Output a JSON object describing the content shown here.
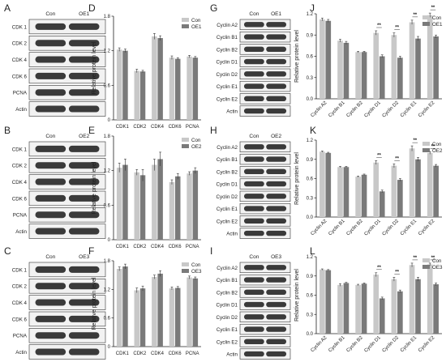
{
  "colors": {
    "con": "#c8c8c8",
    "oe": "#7a7a7a",
    "axis": "#222222"
  },
  "blots": [
    {
      "label": "A",
      "headers": [
        "Con",
        "OE1"
      ],
      "rows": [
        "CDK 1",
        "CDK 2",
        "CDK 4",
        "CDK 6",
        "PCNA",
        "Actin"
      ]
    },
    {
      "label": "B",
      "headers": [
        "Con",
        "OE2"
      ],
      "rows": [
        "CDK 1",
        "CDK 2",
        "CDK 4",
        "CDK 6",
        "PCNA",
        "Actin"
      ]
    },
    {
      "label": "C",
      "headers": [
        "Con",
        "OE3"
      ],
      "rows": [
        "CDK 1",
        "CDK 2",
        "CDK 4",
        "CDK 6",
        "PCNA",
        "Actin"
      ]
    },
    {
      "label": "G",
      "headers": [
        "Con",
        "OE1"
      ],
      "rows": [
        "Cyclin A2",
        "Cyclin B1",
        "Cyclin B2",
        "Cyclin D1",
        "Cyclin D2",
        "Cyclin E1",
        "Cyclin E2",
        "Actin"
      ]
    },
    {
      "label": "H",
      "headers": [
        "Con",
        "OE2"
      ],
      "rows": [
        "Cyclin A2",
        "Cyclin B1",
        "Cyclin B2",
        "Cyclin D1",
        "Cyclin D2",
        "Cyclin E1",
        "Cyclin E2",
        "Actin"
      ]
    },
    {
      "label": "I",
      "headers": [
        "Con",
        "OE3"
      ],
      "rows": [
        "Cyclin A2",
        "Cyclin B1",
        "Cyclin B2",
        "Cyclin D1",
        "Cyclin D2",
        "Cyclin E1",
        "Cyclin E2",
        "Actin"
      ]
    }
  ],
  "chart_data": [
    {
      "label": "D",
      "type": "bar",
      "ylabel": "Relative protein level",
      "ylim": [
        0,
        1.8
      ],
      "yticks": [
        "0",
        "0.6",
        "1.2",
        "1.8"
      ],
      "legend": [
        "Con",
        "OE1"
      ],
      "categories": [
        "CDK1",
        "CDK2",
        "CDK4",
        "CDK6",
        "PCNA"
      ],
      "series": [
        {
          "name": "Con",
          "values": [
            1.22,
            0.85,
            1.45,
            1.08,
            1.1
          ],
          "errors": [
            0.03,
            0.03,
            0.05,
            0.03,
            0.02
          ]
        },
        {
          "name": "OE1",
          "values": [
            1.2,
            0.84,
            1.42,
            1.06,
            1.08
          ],
          "errors": [
            0.03,
            0.02,
            0.04,
            0.02,
            0.02
          ]
        }
      ],
      "significance": []
    },
    {
      "label": "E",
      "type": "bar",
      "ylabel": "Relative protein level",
      "ylim": [
        0,
        1.8
      ],
      "yticks": [
        "0",
        "0.6",
        "1.2",
        "1.8"
      ],
      "legend": [
        "Con",
        "OE2"
      ],
      "categories": [
        "CDK1",
        "CDK2",
        "CDK4",
        "CDK6",
        "PCNA"
      ],
      "series": [
        {
          "name": "Con",
          "values": [
            1.25,
            1.17,
            1.3,
            1.0,
            1.15
          ],
          "errors": [
            0.08,
            0.05,
            0.1,
            0.04,
            0.03
          ]
        },
        {
          "name": "OE2",
          "values": [
            1.3,
            1.12,
            1.4,
            1.1,
            1.2
          ],
          "errors": [
            0.1,
            0.1,
            0.12,
            0.05,
            0.05
          ]
        }
      ],
      "significance": []
    },
    {
      "label": "F",
      "type": "bar",
      "ylabel": "Relative protein level",
      "ylim": [
        0,
        1.8
      ],
      "yticks": [
        "0",
        "0.6",
        "1.2",
        "1.8"
      ],
      "legend": [
        "Con",
        "OE3"
      ],
      "categories": [
        "CDK1",
        "CDK2",
        "CDK4",
        "CDK6",
        "PCNA"
      ],
      "series": [
        {
          "name": "Con",
          "values": [
            1.63,
            1.18,
            1.46,
            1.22,
            1.45
          ],
          "errors": [
            0.04,
            0.05,
            0.04,
            0.03,
            0.03
          ]
        },
        {
          "name": "OE3",
          "values": [
            1.68,
            1.22,
            1.53,
            1.23,
            1.43
          ],
          "errors": [
            0.05,
            0.05,
            0.06,
            0.03,
            0.03
          ]
        }
      ],
      "significance": []
    },
    {
      "label": "J",
      "type": "bar",
      "ylabel": "Relative protein level",
      "ylim": [
        0,
        1.2
      ],
      "yticks": [
        "0.0",
        "0.3",
        "0.6",
        "0.9",
        "1.2"
      ],
      "legend": [
        "Con",
        "OE1"
      ],
      "categories": [
        "Cyclin A2",
        "Cyclin B1",
        "Cyclin B2",
        "Cyclin D1",
        "Cyclin D2",
        "Cyclin E1",
        "Cyclin E2"
      ],
      "series": [
        {
          "name": "Con",
          "values": [
            1.12,
            0.82,
            0.66,
            0.93,
            0.9,
            1.08,
            1.18
          ],
          "errors": [
            0.02,
            0.02,
            0.01,
            0.03,
            0.03,
            0.03,
            0.03
          ]
        },
        {
          "name": "OE1",
          "values": [
            1.1,
            0.79,
            0.66,
            0.6,
            0.58,
            0.85,
            0.88
          ],
          "errors": [
            0.02,
            0.02,
            0.01,
            0.02,
            0.02,
            0.03,
            0.02
          ]
        }
      ],
      "significance": [
        "",
        "",
        "",
        "**",
        "**",
        "**",
        "**"
      ]
    },
    {
      "label": "K",
      "type": "bar",
      "ylabel": "Relative protein level",
      "ylim": [
        0,
        1.2
      ],
      "yticks": [
        "0.0",
        "0.3",
        "0.6",
        "0.9",
        "1.2"
      ],
      "legend": [
        "Con",
        "OE2"
      ],
      "categories": [
        "Cyclin A2",
        "Cyclin B1",
        "Cyclin B2",
        "Cyclin D1",
        "Cyclin D2",
        "Cyclin E1",
        "Cyclin E2"
      ],
      "series": [
        {
          "name": "Con",
          "values": [
            1.02,
            0.78,
            0.63,
            0.85,
            0.8,
            1.07,
            1.0
          ],
          "errors": [
            0.01,
            0.01,
            0.01,
            0.03,
            0.03,
            0.04,
            0.02
          ]
        },
        {
          "name": "OE2",
          "values": [
            1.0,
            0.78,
            0.66,
            0.4,
            0.58,
            0.9,
            0.8
          ],
          "errors": [
            0.01,
            0.01,
            0.01,
            0.02,
            0.02,
            0.03,
            0.02
          ]
        }
      ],
      "significance": [
        "",
        "",
        "",
        "**",
        "**",
        "**",
        "**"
      ]
    },
    {
      "label": "L",
      "type": "bar",
      "ylabel": "Relative protein level",
      "ylim": [
        0,
        1.2
      ],
      "yticks": [
        "0.0",
        "0.3",
        "0.6",
        "0.9",
        "1.2"
      ],
      "legend": [
        "Con",
        "OE3"
      ],
      "categories": [
        "Cyclin A2",
        "Cyclin B1",
        "Cyclin B2",
        "Cyclin D1",
        "Cyclin D2",
        "Cyclin E1",
        "Cyclin E2"
      ],
      "series": [
        {
          "name": "Con",
          "values": [
            1.0,
            0.76,
            0.76,
            0.92,
            0.85,
            1.07,
            1.08
          ],
          "errors": [
            0.01,
            0.02,
            0.01,
            0.03,
            0.03,
            0.03,
            0.02
          ]
        },
        {
          "name": "OE3",
          "values": [
            0.99,
            0.79,
            0.78,
            0.55,
            0.66,
            0.85,
            0.77
          ],
          "errors": [
            0.01,
            0.01,
            0.01,
            0.02,
            0.02,
            0.03,
            0.02
          ]
        }
      ],
      "significance": [
        "",
        "",
        "",
        "**",
        "**",
        "**",
        "**"
      ]
    }
  ]
}
